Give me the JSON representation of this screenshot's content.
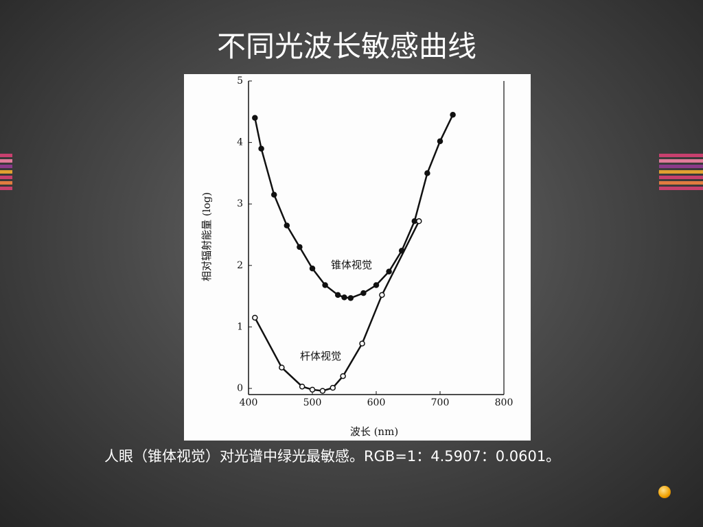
{
  "chart_data": {
    "type": "line",
    "title": "不同光波长敏感曲线",
    "caption": "人眼（锥体视觉）对光谱中绿光最敏感。RGB=1：4.5907：0.0601。",
    "x_label": "波长 (nm)",
    "y_label": "相对辐射能量 (log)",
    "xlim": [
      400,
      800
    ],
    "xticks": [
      400,
      500,
      600,
      700,
      800
    ],
    "ylim": [
      -0.1,
      5
    ],
    "yticks": [
      0,
      1,
      2,
      3,
      4,
      5
    ],
    "series": [
      {
        "name": "锥体视觉",
        "color": "#111111",
        "marker": "filled",
        "x": [
          410,
          420,
          440,
          460,
          480,
          500,
          520,
          540,
          550,
          560,
          580,
          600,
          620,
          640,
          660,
          680,
          700,
          720
        ],
        "values": [
          4.4,
          3.9,
          3.15,
          2.65,
          2.3,
          1.95,
          1.68,
          1.52,
          1.48,
          1.47,
          1.55,
          1.68,
          1.9,
          2.24,
          2.72,
          3.5,
          4.02,
          4.45
        ]
      },
      {
        "name": "杆体视觉",
        "color": "#111111",
        "marker": "open",
        "x": [
          410,
          452,
          484,
          500,
          516,
          532,
          548,
          578,
          609,
          667
        ],
        "values": [
          1.15,
          0.34,
          0.03,
          -0.02,
          -0.04,
          0.01,
          0.2,
          0.73,
          1.52,
          2.72
        ]
      }
    ]
  }
}
